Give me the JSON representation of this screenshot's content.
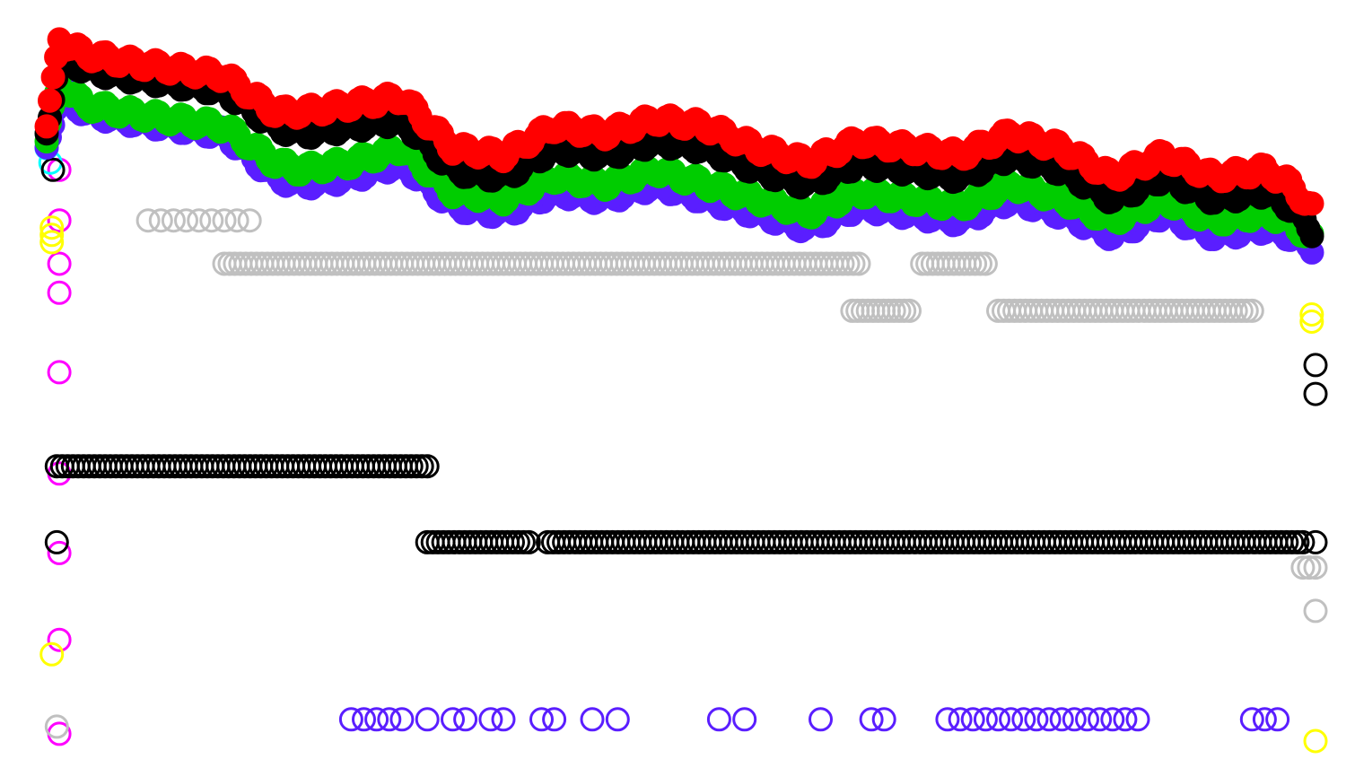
{
  "chart_data": {
    "type": "scatter",
    "title": "",
    "xlabel": "",
    "ylabel": "",
    "xlim": [
      0,
      100
    ],
    "ylim": [
      0,
      100
    ],
    "grid": false,
    "legend": "none",
    "marker": "open-circle",
    "series": [
      {
        "color": "#ff0000",
        "kind": "band",
        "x": [
          0,
          1,
          3,
          6,
          10,
          14,
          18,
          20,
          24,
          28,
          32,
          36,
          40,
          44,
          48,
          52,
          56,
          60,
          64,
          68,
          72,
          76,
          80,
          84,
          88,
          92,
          96,
          98,
          100
        ],
        "y": [
          85,
          97,
          95,
          94,
          93,
          92,
          87,
          87,
          88,
          89,
          82,
          81,
          85,
          84,
          86,
          85,
          82,
          80,
          83,
          82,
          81,
          84,
          82,
          78,
          81,
          78,
          79,
          77,
          73
        ]
      },
      {
        "color": "#000000",
        "kind": "band",
        "x": [
          0,
          1,
          3,
          6,
          10,
          14,
          18,
          20,
          24,
          28,
          32,
          36,
          40,
          44,
          48,
          52,
          56,
          60,
          64,
          68,
          72,
          76,
          80,
          84,
          88,
          92,
          96,
          98,
          100
        ],
        "y": [
          84,
          95,
          93,
          92,
          91,
          90,
          85,
          84,
          85,
          86,
          79,
          78,
          82,
          81,
          83,
          82,
          79,
          77,
          80,
          79,
          78,
          81,
          79,
          75,
          78,
          75,
          76,
          74,
          70
        ]
      },
      {
        "color": "#00cc00",
        "kind": "band",
        "x": [
          0,
          1,
          3,
          6,
          10,
          14,
          18,
          20,
          24,
          28,
          32,
          36,
          40,
          44,
          48,
          52,
          56,
          60,
          64,
          68,
          72,
          76,
          80,
          84,
          88,
          92,
          96,
          98,
          100
        ],
        "y": [
          83,
          91,
          88,
          87,
          86,
          85,
          80,
          79,
          80,
          82,
          76,
          75,
          78,
          77,
          79,
          77,
          75,
          73,
          76,
          75,
          74,
          77,
          75,
          72,
          75,
          72,
          73,
          72,
          69
        ]
      },
      {
        "color": "#5a1eff",
        "kind": "band",
        "x": [
          0,
          1,
          3,
          6,
          10,
          14,
          18,
          20,
          24,
          28,
          32,
          36,
          40,
          44,
          48,
          52,
          56,
          60,
          64,
          68,
          72,
          76,
          80,
          84,
          88,
          92,
          96,
          98,
          100
        ],
        "y": [
          82,
          90,
          87,
          86,
          85,
          84,
          78,
          77,
          78,
          80,
          74,
          73,
          76,
          75,
          77,
          75,
          73,
          71,
          74,
          73,
          72,
          75,
          73,
          70,
          73,
          70,
          71,
          70,
          68
        ]
      },
      {
        "color": "#ff00ff",
        "kind": "points",
        "x": [
          1,
          1,
          1,
          1,
          1,
          1,
          1,
          1,
          1
        ],
        "y": [
          79,
          72,
          66,
          62,
          51,
          37,
          26,
          14,
          1
        ]
      },
      {
        "color": "#00ffff",
        "kind": "points",
        "x": [
          0,
          0,
          0.3
        ],
        "y": [
          84,
          82,
          80
        ]
      },
      {
        "color": "#ffff00",
        "kind": "points",
        "x": [
          0.4,
          0.4,
          0.4,
          99.7,
          99.7,
          0.4,
          100
        ],
        "y": [
          71,
          70,
          69,
          59,
          58,
          12,
          0
        ]
      },
      {
        "color": "#c0c0c0",
        "kind": "points",
        "x": [
          8,
          9,
          10,
          11,
          12,
          13,
          14,
          15,
          16,
          0.8,
          99,
          99.5,
          100,
          100
        ],
        "y": [
          72,
          72,
          72,
          72,
          72,
          72,
          72,
          72,
          72,
          2,
          24,
          24,
          24,
          18
        ]
      },
      {
        "color": "#c0c0c0",
        "kind": "run",
        "segments": [
          {
            "x0": 14,
            "x1": 64,
            "y": 66
          },
          {
            "x0": 69,
            "x1": 74,
            "y": 66
          },
          {
            "x0": 63.5,
            "x1": 68,
            "y": 59.5
          },
          {
            "x0": 75,
            "x1": 95,
            "y": 59.5
          }
        ]
      },
      {
        "color": "#000000",
        "kind": "run",
        "segments": [
          {
            "x0": 0.8,
            "x1": 30,
            "y": 38
          },
          {
            "x0": 30,
            "x1": 38,
            "y": 27.5
          },
          {
            "x0": 39.5,
            "x1": 99,
            "y": 27.5
          }
        ]
      },
      {
        "color": "#000000",
        "kind": "points",
        "x": [
          0.5,
          0.8,
          100,
          100,
          100
        ],
        "y": [
          79,
          27.5,
          52,
          48,
          27.5
        ]
      },
      {
        "color": "#5a1eff",
        "kind": "points",
        "x": [
          24,
          25,
          26,
          27,
          28,
          30,
          32,
          33,
          35,
          36,
          39,
          40,
          43,
          45,
          53,
          55,
          61,
          65,
          66,
          71,
          72,
          73,
          74,
          75,
          76,
          77,
          78,
          79,
          80,
          81,
          82,
          83,
          84,
          85,
          86,
          95,
          96,
          97
        ],
        "y": [
          3,
          3,
          3,
          3,
          3,
          3,
          3,
          3,
          3,
          3,
          3,
          3,
          3,
          3,
          3,
          3,
          3,
          3,
          3,
          3,
          3,
          3,
          3,
          3,
          3,
          3,
          3,
          3,
          3,
          3,
          3,
          3,
          3,
          3,
          3,
          3,
          3,
          3
        ]
      }
    ]
  }
}
